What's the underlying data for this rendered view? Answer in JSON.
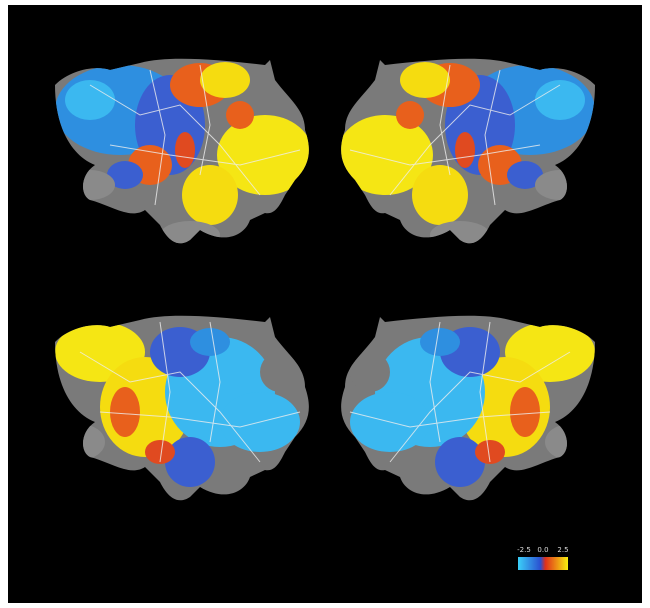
{
  "colorbar": {
    "labels": [
      "-2.5",
      "0.0",
      "2.5"
    ]
  }
}
